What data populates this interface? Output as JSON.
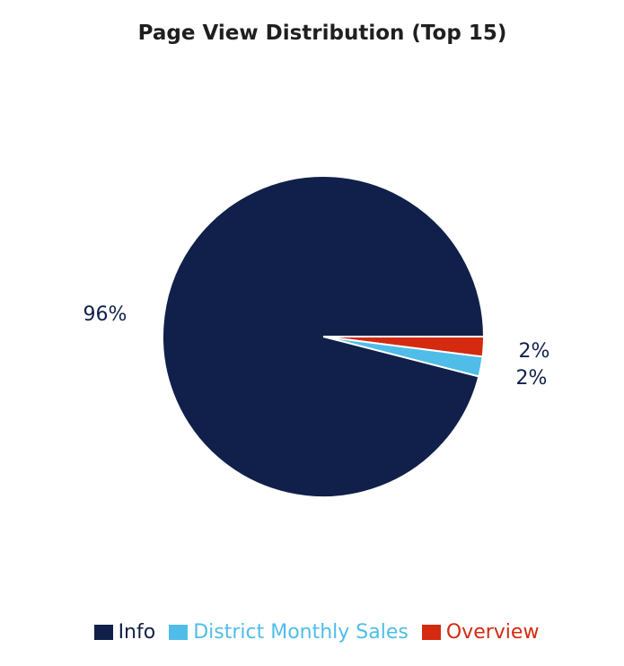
{
  "chart_data": {
    "type": "pie",
    "title": "Page View Distribution (Top 15)",
    "slices": [
      {
        "label": "Info",
        "value": 96,
        "display": "96%",
        "color": "#10204a"
      },
      {
        "label": "District Monthly Sales",
        "value": 2,
        "display": "2%",
        "color": "#4fbde8"
      },
      {
        "label": "Overview",
        "value": 2,
        "display": "2%",
        "color": "#d42a10"
      }
    ],
    "legend_position": "bottom"
  }
}
